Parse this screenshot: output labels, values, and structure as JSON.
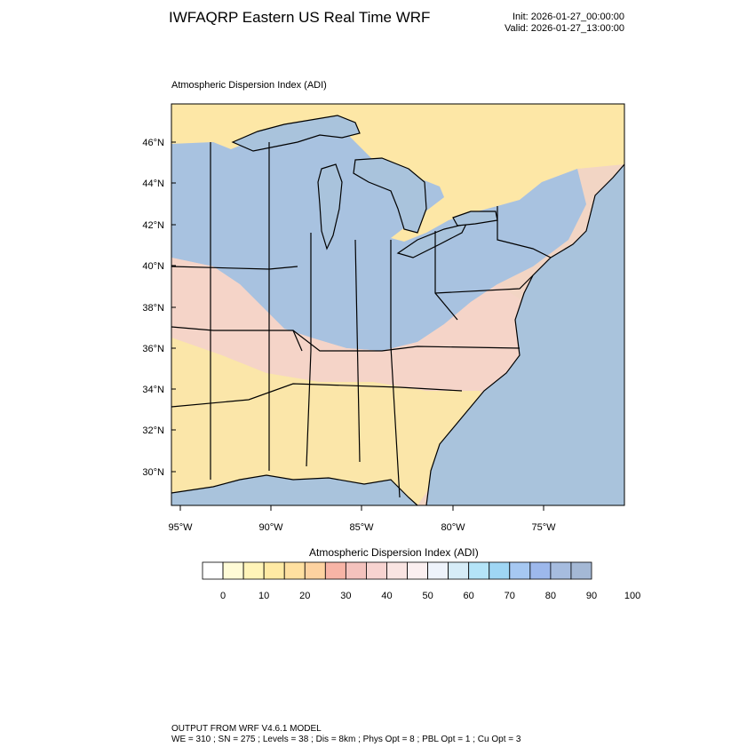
{
  "header": {
    "title": "IWFAQRP Eastern US Real Time WRF",
    "init": "Init: 2026-01-27_00:00:00",
    "valid": "Valid: 2026-01-27_13:00:00"
  },
  "map": {
    "subtitle": "Atmospheric Dispersion Index   (ADI)",
    "lat_labels": [
      "46°N",
      "44°N",
      "42°N",
      "40°N",
      "38°N",
      "36°N",
      "34°N",
      "32°N",
      "30°N"
    ],
    "lon_labels": [
      "95°W",
      "90°W",
      "85°W",
      "80°W",
      "75°W"
    ],
    "colors": {
      "water": "#a9c3dc",
      "canada": "#fde7a6",
      "high": "#a8c2e0",
      "mid": "#f5d4c8",
      "low": "#fbe6a9"
    }
  },
  "colorbar": {
    "title": "Atmospheric Dispersion Index  (ADI)",
    "colors": [
      "#ffffff",
      "#fffbd6",
      "#fff4b8",
      "#ffeaa4",
      "#ffe0a0",
      "#fdd2a0",
      "#f7b4a6",
      "#f4c2bd",
      "#f7d3d0",
      "#f9e4e2",
      "#fbeff0",
      "#eef3fb",
      "#d6ecf7",
      "#b4e4f8",
      "#9fd6f4",
      "#a6c8f2",
      "#9db8ec",
      "#a6bcdf",
      "#a4b8d5"
    ],
    "tick_labels": [
      "0",
      "10",
      "20",
      "30",
      "40",
      "50",
      "60",
      "70",
      "80",
      "90",
      "100"
    ]
  },
  "footer": {
    "line1": "OUTPUT FROM WRF V4.6.1 MODEL",
    "line2": "WE = 310 ; SN = 275 ; Levels = 38 ; Dis = 8km ; Phys Opt = 8 ; PBL Opt = 1 ; Cu Opt = 3"
  }
}
